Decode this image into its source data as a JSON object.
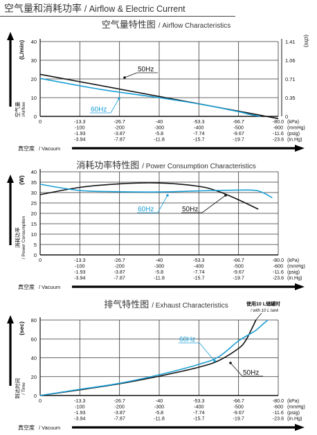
{
  "page": {
    "title_cn": "空气量和消耗功率",
    "title_en": "/ Airflow & Electric Current"
  },
  "colors": {
    "line_50hz": "#111111",
    "line_60hz": "#1a9ed4",
    "axis": "#111111",
    "grid": "#333333"
  },
  "x_axis": {
    "title_cn": "真空度",
    "title_en": "/ Vacuum",
    "ticks": [
      [
        "0",
        "",
        "",
        ""
      ],
      [
        "-13.3",
        "-100",
        "-1.93",
        "-3.94"
      ],
      [
        "-26.7",
        "-200",
        "-3.87",
        "-7.87"
      ],
      [
        "-40",
        "-300",
        "-5.8",
        "-11.8"
      ],
      [
        "-53.3",
        "-400",
        "-7.74",
        "-15.7"
      ],
      [
        "-66.7",
        "-500",
        "-9.67",
        "-19.7"
      ],
      [
        "-80.0",
        "-600",
        "-11.6",
        "-23.6"
      ]
    ],
    "units": [
      "(kPa)",
      "(mmHg)",
      "(psig)",
      "(in.Hg)"
    ]
  },
  "chart_data": [
    {
      "type": "line",
      "title": "空气量特性图",
      "subtitle": "/ Airflow Characteristics",
      "ylabel_left": "(L/min)",
      "ylabel_left_name_cn": "空气量",
      "ylabel_left_name_en": "/Airflow",
      "ylabel_right": "(cfm)",
      "ylim": [
        0,
        40
      ],
      "yticks": [
        0,
        10,
        20,
        30,
        40
      ],
      "yticks_right": [
        "0",
        "0.35",
        "0.71",
        "1.06",
        "1.41"
      ],
      "x_unit": "kPa",
      "xlim": [
        0,
        -80
      ],
      "grid": true,
      "series": [
        {
          "name": "50Hz",
          "x": [
            0,
            -80
          ],
          "y": [
            22.5,
            -1.2
          ]
        },
        {
          "name": "60Hz",
          "x": [
            0,
            -20,
            -40,
            -55,
            -66.7,
            -70,
            -74
          ],
          "y": [
            20.3,
            14.5,
            10.0,
            6.2,
            2.5,
            1.2,
            0
          ]
        }
      ]
    },
    {
      "type": "line",
      "title": "消耗功率特性图",
      "subtitle": "/ Power Consumption Characteristics",
      "ylabel_left": "(W)",
      "ylabel_left_name_cn": "消耗功率",
      "ylabel_left_name_en": "/ Power Consumption",
      "ylim": [
        0,
        40
      ],
      "yticks": [
        0,
        5,
        10,
        15,
        20,
        25,
        30,
        35,
        40
      ],
      "x_unit": "kPa",
      "xlim": [
        0,
        -80
      ],
      "grid": true,
      "series": [
        {
          "name": "50Hz",
          "x": [
            0,
            -13.3,
            -26.7,
            -40,
            -53.3,
            -60,
            -66.7,
            -73.3
          ],
          "y": [
            29,
            32.5,
            34.2,
            34.6,
            33,
            30.5,
            26.5,
            22
          ]
        },
        {
          "name": "60Hz",
          "x": [
            0,
            -13.3,
            -26.7,
            -40,
            -53.3,
            -66.7,
            -73.3,
            -78
          ],
          "y": [
            34,
            31,
            30.4,
            30.3,
            30.8,
            31.2,
            30.8,
            27.5
          ]
        }
      ]
    },
    {
      "type": "line",
      "title": "排气特性图",
      "subtitle": "/ Exhaust Characteristics",
      "note_cn": "使用10 L储罐时",
      "note_en": "/ with 10 L tank",
      "ylabel_left": "(sec)",
      "ylabel_left_name_cn": "到达时间",
      "ylabel_left_name_en": "/ Time",
      "ylim": [
        0,
        80
      ],
      "yticks": [
        0,
        20,
        40,
        60,
        80
      ],
      "x_unit": "kPa",
      "xlim": [
        0,
        -80
      ],
      "grid": true,
      "series": [
        {
          "name": "50Hz",
          "x": [
            0,
            -13.3,
            -26.7,
            -40,
            -53.3,
            -60,
            -66.7,
            -69,
            -71,
            -72.5
          ],
          "y": [
            0,
            6,
            12.5,
            20.5,
            30,
            37,
            50,
            58,
            70,
            80
          ]
        },
        {
          "name": "60Hz",
          "x": [
            0,
            -13.3,
            -26.7,
            -40,
            -53.3,
            -60,
            -66.7,
            -72,
            -75,
            -76.5
          ],
          "y": [
            0,
            6.5,
            13,
            22,
            33,
            41,
            58,
            68,
            76,
            80
          ]
        }
      ]
    }
  ]
}
